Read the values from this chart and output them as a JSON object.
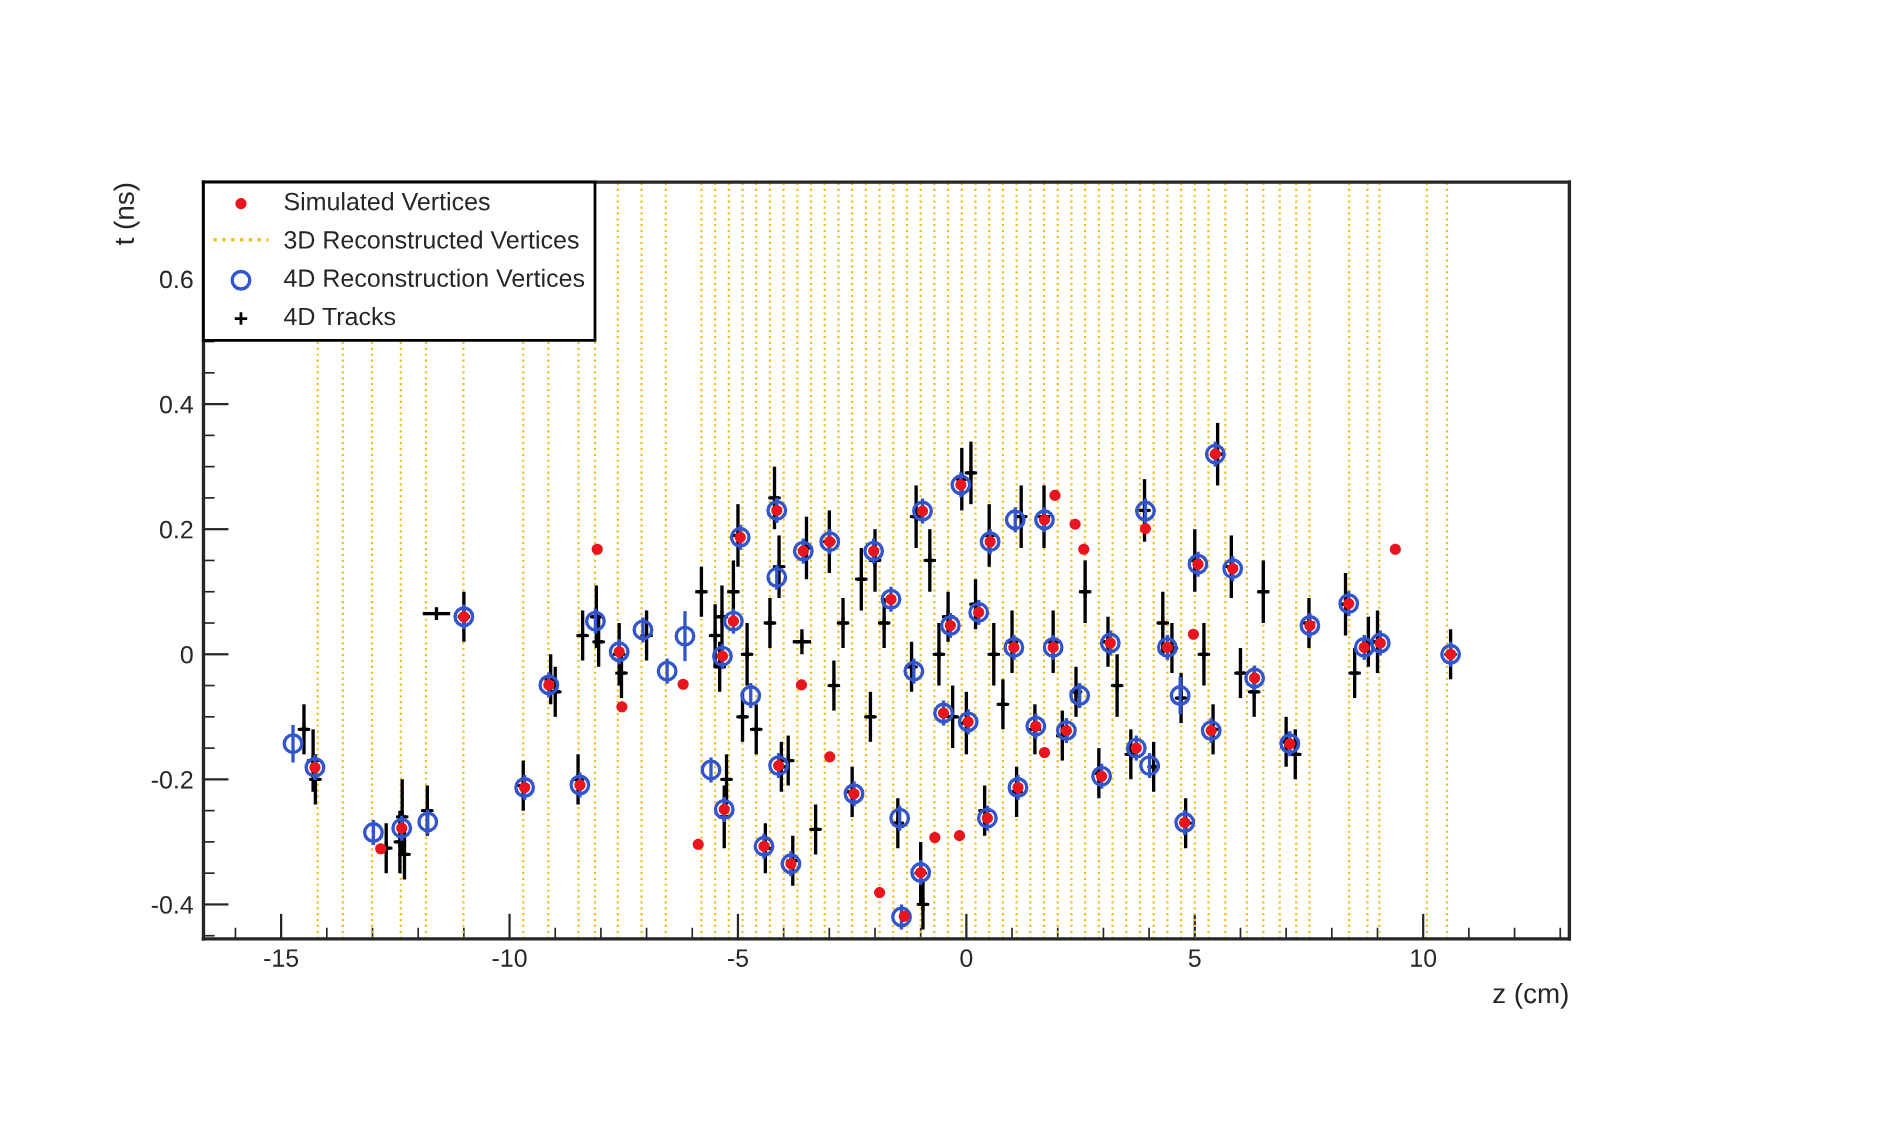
{
  "chart_data": {
    "type": "scatter",
    "xlabel": "z (cm)",
    "ylabel": "t (ns)",
    "xlim": [
      -16.7,
      13.2
    ],
    "ylim": [
      -0.455,
      0.755
    ],
    "xticks": [
      -15,
      -10,
      -5,
      0,
      5,
      10
    ],
    "yticks": [
      -0.4,
      -0.2,
      0,
      0.2,
      0.4,
      0.6
    ],
    "grid": false,
    "legend": "top left",
    "series": [
      {
        "name": "Simulated Vertices",
        "marker": "circle",
        "color": "#e8141e",
        "x": [
          -8.08,
          -7.54,
          -6.2,
          -5.87,
          -1.9,
          -1.36,
          -0.69,
          -0.15,
          1.94,
          2.38,
          2.57,
          9.39,
          -12.82,
          -3.61,
          -2.99,
          1.71,
          4.97,
          3.92,
          -14.26,
          -12.36,
          -11.0,
          -9.67,
          -9.14,
          -8.46,
          -7.6,
          -5.3,
          -5.1,
          -4.95,
          -4.43,
          -4.15,
          -4.11,
          -3.84,
          -2.99,
          -2.46,
          -2.03,
          -1.65,
          -1.0,
          -0.96,
          -0.35,
          -0.12,
          0.04,
          0.46,
          0.52,
          1.13,
          1.52,
          1.71,
          1.9,
          2.19,
          2.96,
          3.15,
          3.72,
          4.4,
          4.78,
          5.07,
          5.36,
          5.45,
          5.83,
          6.31,
          7.08,
          7.52,
          8.37,
          8.71,
          9.06,
          10.6,
          1.04,
          0.27,
          -0.5,
          -5.34,
          -3.57
        ],
        "values": [
          0.168,
          -0.084,
          -0.048,
          -0.304,
          -0.381,
          -0.419,
          -0.293,
          -0.29,
          0.254,
          0.208,
          0.168,
          0.168,
          -0.311,
          -0.049,
          -0.164,
          -0.157,
          0.032,
          0.201,
          -0.181,
          -0.278,
          0.06,
          -0.213,
          -0.049,
          -0.209,
          0.004,
          -0.248,
          0.053,
          0.187,
          -0.307,
          0.23,
          -0.178,
          -0.335,
          0.18,
          -0.223,
          0.165,
          0.088,
          -0.349,
          0.229,
          0.046,
          0.271,
          -0.108,
          -0.262,
          0.18,
          -0.213,
          -0.115,
          0.215,
          0.011,
          -0.122,
          -0.195,
          0.018,
          -0.15,
          0.011,
          -0.269,
          0.144,
          -0.122,
          0.32,
          0.137,
          -0.038,
          -0.143,
          0.046,
          0.081,
          0.011,
          0.018,
          0.0,
          0.011,
          0.067,
          -0.094,
          -0.003,
          0.165
        ]
      },
      {
        "name": "4D Reconstruction Vertices",
        "marker": "circle",
        "color": "#3355cc",
        "x": [
          -14.74,
          -14.26,
          -12.98,
          -12.36,
          -11.79,
          -9.67,
          -9.14,
          -8.46,
          -11.0,
          -8.12,
          -7.6,
          -7.08,
          -6.55,
          -6.16,
          -5.59,
          -5.3,
          -5.1,
          -5.34,
          -4.95,
          -4.72,
          -4.43,
          -4.15,
          -4.15,
          -4.11,
          -3.84,
          -3.57,
          -2.99,
          -2.46,
          -2.03,
          -1.65,
          -1.46,
          -1.15,
          -1.0,
          -1.42,
          -0.96,
          -0.35,
          -0.12,
          0.04,
          0.46,
          0.52,
          1.07,
          1.13,
          1.52,
          1.71,
          1.9,
          2.19,
          2.96,
          3.15,
          3.72,
          3.92,
          4.01,
          4.4,
          4.68,
          4.78,
          5.07,
          5.36,
          5.45,
          5.83,
          6.31,
          7.08,
          7.52,
          8.37,
          8.71,
          9.06,
          10.6,
          1.04,
          2.48,
          0.27,
          -0.5
        ],
        "values": [
          -0.143,
          -0.181,
          -0.285,
          -0.278,
          -0.268,
          -0.213,
          -0.049,
          -0.209,
          0.06,
          0.053,
          0.004,
          0.039,
          -0.027,
          0.029,
          -0.185,
          -0.248,
          0.053,
          -0.003,
          0.187,
          -0.066,
          -0.307,
          0.23,
          0.123,
          -0.178,
          -0.335,
          0.165,
          0.18,
          -0.223,
          0.165,
          0.088,
          -0.262,
          -0.027,
          -0.349,
          -0.42,
          0.229,
          0.046,
          0.271,
          -0.108,
          -0.262,
          0.18,
          0.215,
          -0.213,
          -0.115,
          0.215,
          0.011,
          -0.122,
          -0.195,
          0.018,
          -0.15,
          0.229,
          -0.178,
          0.011,
          -0.066,
          -0.269,
          0.144,
          -0.122,
          0.32,
          0.137,
          -0.038,
          -0.143,
          0.046,
          0.081,
          0.011,
          0.018,
          0.0,
          0.011,
          -0.066,
          0.067,
          -0.094
        ],
        "errors": [
          0.03,
          0.02,
          0.02,
          0.02,
          0.02,
          0.02,
          0.02,
          0.02,
          0.02,
          0.02,
          0.02,
          0.02,
          0.02,
          0.04,
          0.02,
          0.02,
          0.02,
          0.02,
          0.02,
          0.02,
          0.02,
          0.02,
          0.02,
          0.02,
          0.02,
          0.02,
          0.02,
          0.02,
          0.02,
          0.02,
          0.02,
          0.02,
          0.02,
          0.02,
          0.02,
          0.02,
          0.02,
          0.02,
          0.02,
          0.02,
          0.02,
          0.02,
          0.02,
          0.02,
          0.02,
          0.02,
          0.02,
          0.02,
          0.02,
          0.02,
          0.02,
          0.02,
          0.03,
          0.02,
          0.02,
          0.02,
          0.02,
          0.02,
          0.02,
          0.02,
          0.02,
          0.02,
          0.02,
          0.02,
          0.02,
          0.02,
          0.02,
          0.02,
          0.02
        ]
      },
      {
        "name": "4D Tracks",
        "marker": "cross",
        "color": "#000000",
        "x": [
          -14.5,
          -14.3,
          -14.25,
          -12.7,
          -12.4,
          -12.35,
          -12.3,
          -11.8,
          -11.6,
          -11.0,
          -9.7,
          -9.1,
          -9.0,
          -8.5,
          -8.1,
          -8.05,
          -8.4,
          -7.6,
          -7.55,
          -7.0,
          -5.8,
          -5.5,
          -5.4,
          -5.35,
          -5.3,
          -5.25,
          -5.1,
          -5.0,
          -4.9,
          -4.8,
          -4.6,
          -4.4,
          -4.3,
          -4.2,
          -4.1,
          -4.05,
          -3.9,
          -3.8,
          -3.6,
          -3.5,
          -3.3,
          -3.0,
          -2.9,
          -2.7,
          -2.5,
          -2.3,
          -2.1,
          -2.0,
          -1.8,
          -1.5,
          -1.2,
          -1.1,
          -1.0,
          -0.95,
          -0.8,
          -0.6,
          -0.4,
          -0.3,
          -0.1,
          0.0,
          0.1,
          0.2,
          0.4,
          0.5,
          0.6,
          0.8,
          1.0,
          1.1,
          1.2,
          1.5,
          1.7,
          1.9,
          2.1,
          2.4,
          2.6,
          2.9,
          3.1,
          3.3,
          3.6,
          3.9,
          4.1,
          4.3,
          4.5,
          4.7,
          4.8,
          5.0,
          5.2,
          5.4,
          5.5,
          5.8,
          6.0,
          6.3,
          6.5,
          7.0,
          7.2,
          7.5,
          8.3,
          8.5,
          8.8,
          9.0,
          10.6
        ],
        "values": [
          -0.12,
          -0.17,
          -0.2,
          -0.31,
          -0.3,
          -0.26,
          -0.32,
          -0.25,
          0.065,
          0.06,
          -0.21,
          -0.04,
          -0.06,
          -0.2,
          0.06,
          0.02,
          0.03,
          0.0,
          -0.03,
          0.03,
          0.1,
          0.03,
          -0.02,
          0.06,
          -0.26,
          -0.2,
          0.1,
          0.19,
          -0.1,
          0.0,
          -0.12,
          -0.31,
          0.05,
          0.25,
          0.14,
          -0.18,
          -0.17,
          -0.33,
          0.02,
          0.17,
          -0.28,
          0.18,
          -0.05,
          0.05,
          -0.22,
          0.12,
          -0.1,
          0.15,
          0.05,
          -0.27,
          -0.02,
          0.22,
          -0.35,
          -0.4,
          0.15,
          0.0,
          0.06,
          -0.1,
          0.28,
          -0.11,
          0.29,
          0.08,
          -0.25,
          0.19,
          0.0,
          -0.08,
          0.02,
          -0.22,
          0.22,
          -0.12,
          0.22,
          0.02,
          -0.13,
          -0.06,
          0.1,
          -0.19,
          0.02,
          -0.05,
          -0.16,
          0.23,
          -0.18,
          0.05,
          0.01,
          -0.07,
          -0.27,
          0.15,
          0.0,
          -0.12,
          0.32,
          0.14,
          -0.03,
          -0.06,
          0.1,
          -0.14,
          -0.16,
          0.05,
          0.08,
          -0.03,
          0.02,
          0.02,
          0.0
        ],
        "errors": [
          0.04,
          0.05,
          0.04,
          0.04,
          0.05,
          0.06,
          0.04,
          0.04,
          0.01,
          0.04,
          0.04,
          0.04,
          0.04,
          0.04,
          0.05,
          0.04,
          0.04,
          0.05,
          0.04,
          0.04,
          0.04,
          0.05,
          0.04,
          0.05,
          0.05,
          0.04,
          0.05,
          0.05,
          0.04,
          0.05,
          0.04,
          0.04,
          0.04,
          0.05,
          0.05,
          0.04,
          0.04,
          0.04,
          0.02,
          0.05,
          0.04,
          0.05,
          0.04,
          0.04,
          0.04,
          0.05,
          0.04,
          0.05,
          0.04,
          0.04,
          0.04,
          0.05,
          0.05,
          0.04,
          0.05,
          0.05,
          0.04,
          0.05,
          0.05,
          0.05,
          0.05,
          0.04,
          0.04,
          0.05,
          0.05,
          0.04,
          0.05,
          0.04,
          0.05,
          0.04,
          0.05,
          0.05,
          0.04,
          0.04,
          0.05,
          0.04,
          0.04,
          0.05,
          0.04,
          0.05,
          0.04,
          0.05,
          0.04,
          0.04,
          0.04,
          0.05,
          0.05,
          0.04,
          0.05,
          0.05,
          0.04,
          0.04,
          0.05,
          0.04,
          0.04,
          0.04,
          0.05,
          0.04,
          0.04,
          0.05,
          0.04
        ],
        "xerrors": [
          0.1,
          0.1,
          0.1,
          0.1,
          0.1,
          0.1,
          0.1,
          0.1,
          0.3,
          0.1,
          0.1,
          0.1,
          0.1,
          0.1,
          0.1,
          0.1,
          0.1,
          0.1,
          0.1,
          0.1,
          0.1,
          0.1,
          0.1,
          0.1,
          0.1,
          0.1,
          0.1,
          0.1,
          0.1,
          0.1,
          0.1,
          0.1,
          0.1,
          0.1,
          0.1,
          0.1,
          0.1,
          0.1,
          0.2,
          0.1,
          0.1,
          0.1,
          0.1,
          0.1,
          0.1,
          0.1,
          0.1,
          0.1,
          0.1,
          0.1,
          0.1,
          0.1,
          0.1,
          0.1,
          0.1,
          0.1,
          0.1,
          0.1,
          0.1,
          0.1,
          0.1,
          0.1,
          0.1,
          0.1,
          0.1,
          0.1,
          0.1,
          0.1,
          0.1,
          0.1,
          0.1,
          0.1,
          0.1,
          0.1,
          0.1,
          0.1,
          0.1,
          0.1,
          0.1,
          0.1,
          0.1,
          0.1,
          0.1,
          0.1,
          0.1,
          0.1,
          0.1,
          0.1,
          0.1,
          0.1,
          0.1,
          0.1,
          0.1,
          0.1,
          0.1,
          0.1,
          0.1,
          0.1,
          0.1,
          0.1,
          0.1
        ]
      }
    ],
    "ref_lines": [
      {
        "axis": "x",
        "value": -14.2,
        "label": "3D Reconstructed Vertices",
        "color": "#f0c020",
        "line_style": "dotted"
      },
      {
        "axis": "x",
        "value": -13.65,
        "color": "#f0c020",
        "line_style": "dotted"
      },
      {
        "axis": "x",
        "value": -13.01,
        "color": "#f0c020",
        "line_style": "dotted"
      },
      {
        "axis": "x",
        "value": -12.38,
        "color": "#f0c020",
        "line_style": "dotted"
      },
      {
        "axis": "x",
        "value": -11.83,
        "color": "#f0c020",
        "line_style": "dotted"
      },
      {
        "axis": "x",
        "value": -11.01,
        "color": "#f0c020",
        "line_style": "dotted"
      },
      {
        "axis": "x",
        "value": -9.7,
        "color": "#f0c020",
        "line_style": "dotted"
      },
      {
        "axis": "x",
        "value": -9.15,
        "color": "#f0c020",
        "line_style": "dotted"
      },
      {
        "axis": "x",
        "value": -8.49,
        "color": "#f0c020",
        "line_style": "dotted"
      },
      {
        "axis": "x",
        "value": -8.13,
        "color": "#f0c020",
        "line_style": "dotted"
      },
      {
        "axis": "x",
        "value": -7.63,
        "color": "#f0c020",
        "line_style": "dotted"
      },
      {
        "axis": "x",
        "value": -7.11,
        "color": "#f0c020",
        "line_style": "dotted"
      },
      {
        "axis": "x",
        "value": -6.58,
        "color": "#f0c020",
        "line_style": "dotted"
      },
      {
        "axis": "x",
        "value": -5.8,
        "color": "#f0c020",
        "line_style": "dotted"
      },
      {
        "axis": "x",
        "value": -5.5,
        "color": "#f0c020",
        "line_style": "dotted"
      },
      {
        "axis": "x",
        "value": -5.2,
        "color": "#f0c020",
        "line_style": "dotted"
      },
      {
        "axis": "x",
        "value": -4.9,
        "color": "#f0c020",
        "line_style": "dotted"
      },
      {
        "axis": "x",
        "value": -4.6,
        "color": "#f0c020",
        "line_style": "dotted"
      },
      {
        "axis": "x",
        "value": -4.3,
        "color": "#f0c020",
        "line_style": "dotted"
      },
      {
        "axis": "x",
        "value": -4.0,
        "color": "#f0c020",
        "line_style": "dotted"
      },
      {
        "axis": "x",
        "value": -3.7,
        "color": "#f0c020",
        "line_style": "dotted"
      },
      {
        "axis": "x",
        "value": -3.4,
        "color": "#f0c020",
        "line_style": "dotted"
      },
      {
        "axis": "x",
        "value": -3.1,
        "color": "#f0c020",
        "line_style": "dotted"
      },
      {
        "axis": "x",
        "value": -2.8,
        "color": "#f0c020",
        "line_style": "dotted"
      },
      {
        "axis": "x",
        "value": -2.5,
        "color": "#f0c020",
        "line_style": "dotted"
      },
      {
        "axis": "x",
        "value": -2.2,
        "color": "#f0c020",
        "line_style": "dotted"
      },
      {
        "axis": "x",
        "value": -1.9,
        "color": "#f0c020",
        "line_style": "dotted"
      },
      {
        "axis": "x",
        "value": -1.6,
        "color": "#f0c020",
        "line_style": "dotted"
      },
      {
        "axis": "x",
        "value": -1.3,
        "color": "#f0c020",
        "line_style": "dotted"
      },
      {
        "axis": "x",
        "value": -1.0,
        "color": "#f0c020",
        "line_style": "dotted"
      },
      {
        "axis": "x",
        "value": -0.7,
        "color": "#f0c020",
        "line_style": "dotted"
      },
      {
        "axis": "x",
        "value": -0.4,
        "color": "#f0c020",
        "line_style": "dotted"
      },
      {
        "axis": "x",
        "value": -0.1,
        "color": "#f0c020",
        "line_style": "dotted"
      },
      {
        "axis": "x",
        "value": 0.2,
        "color": "#f0c020",
        "line_style": "dotted"
      },
      {
        "axis": "x",
        "value": 0.5,
        "color": "#f0c020",
        "line_style": "dotted"
      },
      {
        "axis": "x",
        "value": 0.8,
        "color": "#f0c020",
        "line_style": "dotted"
      },
      {
        "axis": "x",
        "value": 1.1,
        "color": "#f0c020",
        "line_style": "dotted"
      },
      {
        "axis": "x",
        "value": 1.4,
        "color": "#f0c020",
        "line_style": "dotted"
      },
      {
        "axis": "x",
        "value": 1.7,
        "color": "#f0c020",
        "line_style": "dotted"
      },
      {
        "axis": "x",
        "value": 2.0,
        "color": "#f0c020",
        "line_style": "dotted"
      },
      {
        "axis": "x",
        "value": 2.3,
        "color": "#f0c020",
        "line_style": "dotted"
      },
      {
        "axis": "x",
        "value": 2.6,
        "color": "#f0c020",
        "line_style": "dotted"
      },
      {
        "axis": "x",
        "value": 2.9,
        "color": "#f0c020",
        "line_style": "dotted"
      },
      {
        "axis": "x",
        "value": 3.2,
        "color": "#f0c020",
        "line_style": "dotted"
      },
      {
        "axis": "x",
        "value": 3.5,
        "color": "#f0c020",
        "line_style": "dotted"
      },
      {
        "axis": "x",
        "value": 3.8,
        "color": "#f0c020",
        "line_style": "dotted"
      },
      {
        "axis": "x",
        "value": 4.1,
        "color": "#f0c020",
        "line_style": "dotted"
      },
      {
        "axis": "x",
        "value": 4.4,
        "color": "#f0c020",
        "line_style": "dotted"
      },
      {
        "axis": "x",
        "value": 4.7,
        "color": "#f0c020",
        "line_style": "dotted"
      },
      {
        "axis": "x",
        "value": 5.0,
        "color": "#f0c020",
        "line_style": "dotted"
      },
      {
        "axis": "x",
        "value": 5.3,
        "color": "#f0c020",
        "line_style": "dotted"
      },
      {
        "axis": "x",
        "value": 5.67,
        "color": "#f0c020",
        "line_style": "dotted"
      },
      {
        "axis": "x",
        "value": 6.14,
        "color": "#f0c020",
        "line_style": "dotted"
      },
      {
        "axis": "x",
        "value": 6.5,
        "color": "#f0c020",
        "line_style": "dotted"
      },
      {
        "axis": "x",
        "value": 6.86,
        "color": "#f0c020",
        "line_style": "dotted"
      },
      {
        "axis": "x",
        "value": 7.22,
        "color": "#f0c020",
        "line_style": "dotted"
      },
      {
        "axis": "x",
        "value": 7.51,
        "color": "#f0c020",
        "line_style": "dotted"
      },
      {
        "axis": "x",
        "value": 8.38,
        "color": "#f0c020",
        "line_style": "dotted"
      },
      {
        "axis": "x",
        "value": 8.78,
        "color": "#f0c020",
        "line_style": "dotted"
      },
      {
        "axis": "x",
        "value": 9.04,
        "color": "#f0c020",
        "line_style": "dotted"
      },
      {
        "axis": "x",
        "value": 10.08,
        "color": "#f0c020",
        "line_style": "dotted"
      },
      {
        "axis": "x",
        "value": 10.52,
        "color": "#f0c020",
        "line_style": "dotted"
      }
    ]
  }
}
